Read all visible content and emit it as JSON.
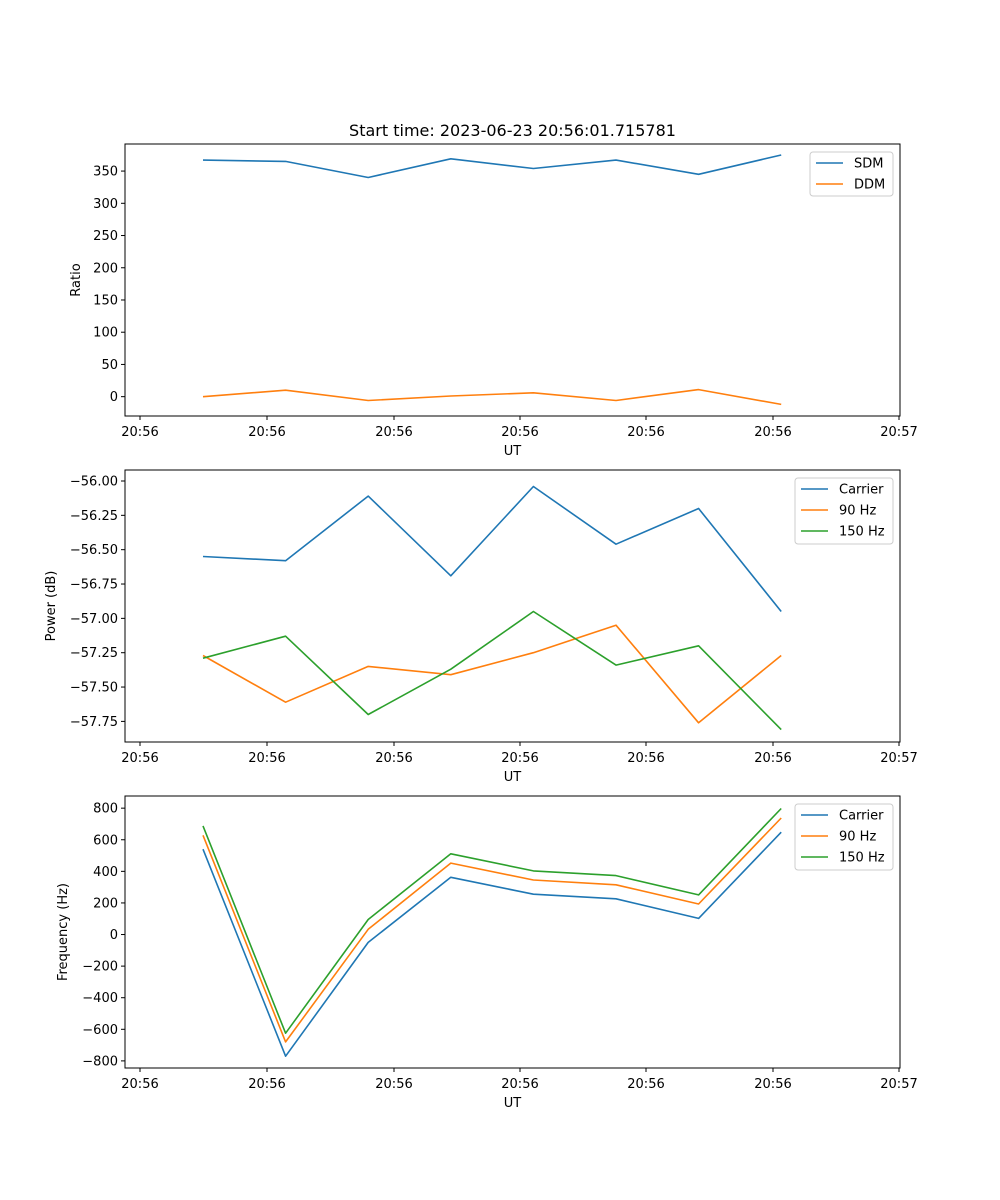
{
  "colors": {
    "blue": "#1f77b4",
    "orange": "#ff7f0e",
    "green": "#2ca02c"
  },
  "chart_data": [
    {
      "type": "line",
      "title": "Start time: 2023-06-23 20:56:01.715781",
      "xlabel": "UT",
      "ylabel": "Ratio",
      "xtick_labels": [
        "20:56",
        "20:56",
        "20:56",
        "20:56",
        "20:56",
        "20:56",
        "20:56",
        "20:57"
      ],
      "yticks": [
        0,
        50,
        100,
        150,
        200,
        250,
        300,
        350
      ],
      "ylim": [
        -30,
        392
      ],
      "legend_position": "top-right",
      "series": [
        {
          "name": "SDM",
          "color": "#1f77b4",
          "values": [
            367,
            365,
            340,
            369,
            354,
            367,
            345,
            375
          ]
        },
        {
          "name": "DDM",
          "color": "#ff7f0e",
          "values": [
            0,
            10,
            -6,
            1,
            6,
            -6,
            11,
            -12
          ]
        }
      ]
    },
    {
      "type": "line",
      "title": "",
      "xlabel": "UT",
      "ylabel": "Power (dB)",
      "xtick_labels": [
        "20:56",
        "20:56",
        "20:56",
        "20:56",
        "20:56",
        "20:56",
        "20:56",
        "20:57"
      ],
      "yticks": [
        -56.0,
        -56.25,
        -56.5,
        -56.75,
        -57.0,
        -57.25,
        -57.5,
        -57.75
      ],
      "ytick_labels": [
        "−56.00",
        "−56.25",
        "−56.50",
        "−56.75",
        "−57.00",
        "−57.25",
        "−57.50",
        "−57.75"
      ],
      "ylim": [
        -57.9,
        -55.92
      ],
      "legend_position": "top-right",
      "series": [
        {
          "name": "Carrier",
          "color": "#1f77b4",
          "values": [
            -56.55,
            -56.58,
            -56.11,
            -56.69,
            -56.04,
            -56.46,
            -56.2,
            -56.95
          ]
        },
        {
          "name": "90 Hz",
          "color": "#ff7f0e",
          "values": [
            -57.27,
            -57.61,
            -57.35,
            -57.41,
            -57.25,
            -57.05,
            -57.76,
            -57.27
          ]
        },
        {
          "name": "150 Hz",
          "color": "#2ca02c",
          "values": [
            -57.29,
            -57.13,
            -57.7,
            -57.37,
            -56.95,
            -57.34,
            -57.2,
            -57.81
          ]
        }
      ]
    },
    {
      "type": "line",
      "title": "",
      "xlabel": "UT",
      "ylabel": "Frequency (Hz)",
      "xtick_labels": [
        "20:56",
        "20:56",
        "20:56",
        "20:56",
        "20:56",
        "20:56",
        "20:56",
        "20:57"
      ],
      "yticks": [
        800,
        600,
        400,
        200,
        0,
        -200,
        -400,
        -600,
        -800
      ],
      "ytick_labels": [
        "800",
        "600",
        "400",
        "200",
        "0",
        "−200",
        "−400",
        "−600",
        "−800"
      ],
      "ylim": [
        -845,
        877
      ],
      "legend_position": "top-right",
      "series": [
        {
          "name": "Carrier",
          "color": "#1f77b4",
          "values": [
            540,
            -770,
            -50,
            362,
            255,
            226,
            102,
            648
          ]
        },
        {
          "name": "90 Hz",
          "color": "#ff7f0e",
          "values": [
            628,
            -680,
            33,
            452,
            345,
            315,
            193,
            738
          ]
        },
        {
          "name": "150 Hz",
          "color": "#2ca02c",
          "values": [
            688,
            -625,
            95,
            511,
            403,
            373,
            251,
            798
          ]
        }
      ]
    }
  ]
}
